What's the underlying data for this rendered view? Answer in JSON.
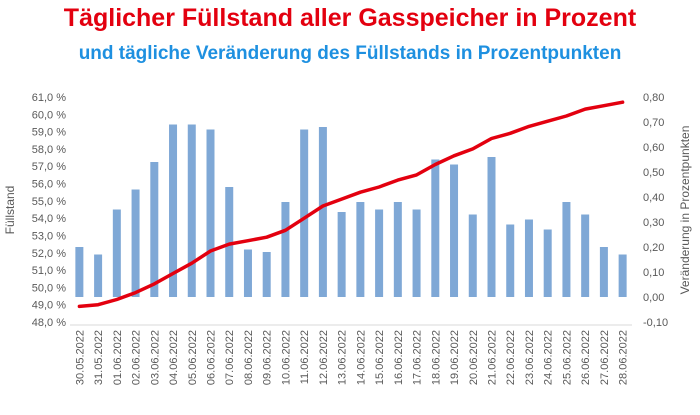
{
  "chart_data": {
    "type": "bar+line",
    "title": "Täglicher Füllstand aller Gasspeicher in Prozent",
    "subtitle": "und tägliche Veränderung des Füllstands in Prozentpunkten",
    "ylabel_left": "Füllstand",
    "ylabel_right": "Veränderung in Prozentpunkten",
    "ylim_left": [
      48.0,
      61.0
    ],
    "ylim_right": [
      -0.1,
      0.8
    ],
    "left_ticks": [
      "61,0 %",
      "60,0 %",
      "59,0 %",
      "58,0 %",
      "57,0 %",
      "56,0 %",
      "55,0 %",
      "54,0 %",
      "53,0 %",
      "52,0 %",
      "51,0 %",
      "50,0 %",
      "49,0 %",
      "48,0 %"
    ],
    "right_ticks": [
      "0,80",
      "0,70",
      "0,60",
      "0,50",
      "0,40",
      "0,30",
      "0,20",
      "0,10",
      "0,00",
      "-0,10"
    ],
    "categories": [
      "30.05.2022",
      "31.05.2022",
      "01.06.2022",
      "02.06.2022",
      "03.06.2022",
      "04.06.2022",
      "05.06.2022",
      "06.06.2022",
      "07.06.2022",
      "08.06.2022",
      "09.06.2022",
      "10.06.2022",
      "11.06.2022",
      "12.06.2022",
      "13.06.2022",
      "14.06.2022",
      "15.06.2022",
      "16.06.2022",
      "17.06.2022",
      "18.06.2022",
      "19.06.2022",
      "20.06.2022",
      "21.06.2022",
      "22.06.2022",
      "23.06.2022",
      "24.06.2022",
      "25.06.2022",
      "26.06.2022",
      "27.06.2022",
      "28.06.2022"
    ],
    "series": [
      {
        "type": "bar",
        "axis": "right",
        "color": "#7fa8d6",
        "values": [
          0.2,
          0.17,
          0.35,
          0.43,
          0.54,
          0.69,
          0.69,
          0.67,
          0.44,
          0.19,
          0.18,
          0.38,
          0.67,
          0.68,
          0.34,
          0.38,
          0.35,
          0.38,
          0.35,
          0.55,
          0.53,
          0.33,
          0.56,
          0.29,
          0.31,
          0.27,
          0.38,
          0.33,
          0.2,
          0.17
        ]
      },
      {
        "type": "line",
        "axis": "left",
        "color": "#e3000f",
        "values": [
          48.9,
          49.0,
          49.3,
          49.7,
          50.2,
          50.8,
          51.4,
          52.1,
          52.5,
          52.7,
          52.9,
          53.3,
          54.0,
          54.7,
          55.1,
          55.5,
          55.8,
          56.2,
          56.5,
          57.1,
          57.6,
          58.0,
          58.6,
          58.9,
          59.3,
          59.6,
          59.9,
          60.3,
          60.5,
          60.7
        ]
      }
    ]
  }
}
